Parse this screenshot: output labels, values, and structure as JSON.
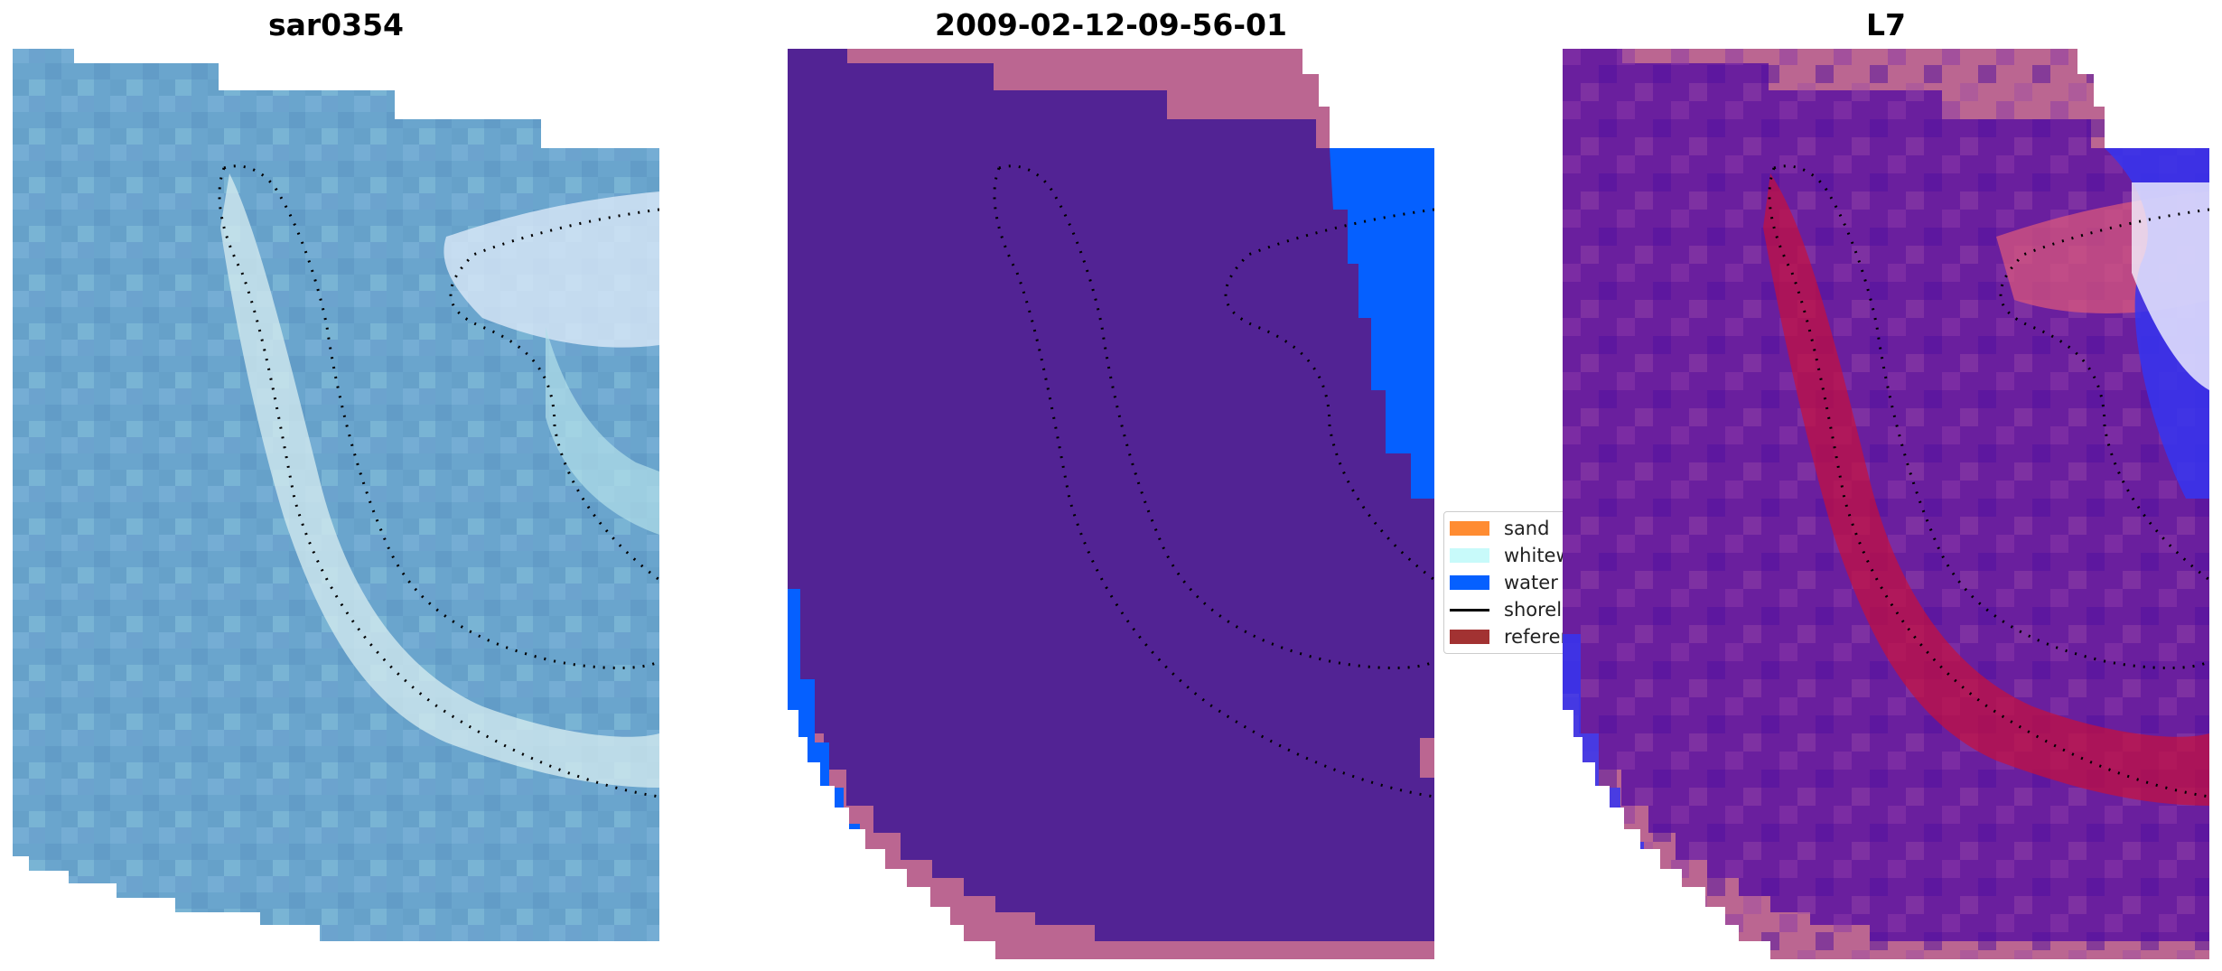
{
  "panels": [
    {
      "title": "sar0354",
      "style": "rgb",
      "base_color": "#6aa5cd"
    },
    {
      "title": "2009-02-12-09-56-01",
      "style": "classified",
      "base_color": "#522394",
      "water_color": "#0560ff",
      "edge_color": "#bb6691"
    },
    {
      "title": "L7",
      "style": "index",
      "base_color": "#6a1f9e",
      "red_color": "#c8103c",
      "blue_color": "#3535f0",
      "edge_color": "#bb6691"
    }
  ],
  "legend": {
    "items": [
      {
        "label": "sand",
        "color": "#ff8c32",
        "kind": "patch"
      },
      {
        "label": "whitewater",
        "color": "#c8fafa",
        "kind": "patch"
      },
      {
        "label": "water",
        "color": "#0560ff",
        "kind": "patch"
      },
      {
        "label": "shoreline",
        "color": "#000000",
        "kind": "line"
      },
      {
        "label": "reference",
        "color": "#a23232",
        "kind": "patch"
      }
    ]
  }
}
